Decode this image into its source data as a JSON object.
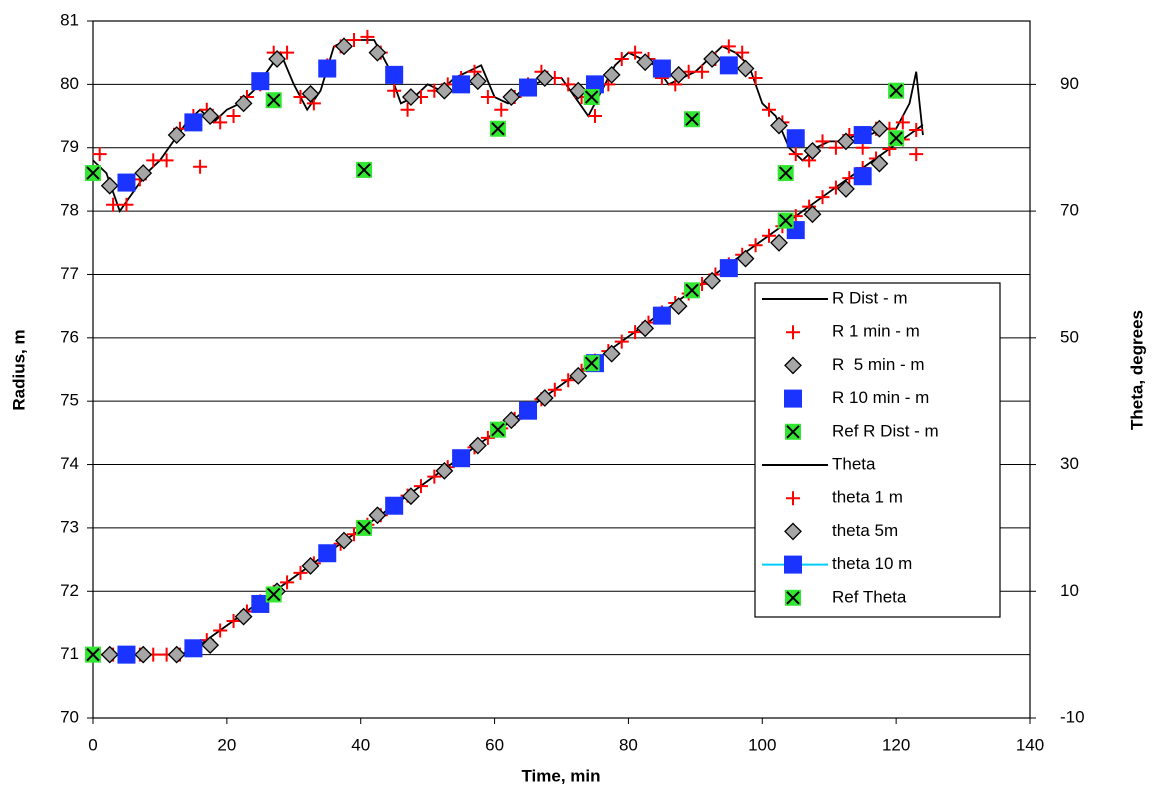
{
  "chart_data": {
    "type": "scatter",
    "x_label": "Time, min",
    "y_label": "Radius, m",
    "y2_label": "Theta, degrees",
    "xlim": [
      0,
      140
    ],
    "xticks": [
      0,
      20,
      40,
      60,
      80,
      100,
      120,
      140
    ],
    "ylim": [
      70,
      81
    ],
    "yticks": [
      70,
      71,
      72,
      73,
      74,
      75,
      76,
      77,
      78,
      79,
      80,
      81
    ],
    "y2lim": [
      -10,
      100
    ],
    "y2ticks": [
      -10,
      10,
      30,
      50,
      70,
      90
    ],
    "grid": true,
    "legend": "right",
    "series": [
      {
        "name": "R Dist - m",
        "marker": "line",
        "color": "#000000",
        "x": [
          0,
          2,
          4,
          6,
          8,
          10,
          12,
          14,
          16,
          18,
          20,
          22,
          24,
          26,
          28,
          30,
          32,
          34,
          36,
          38,
          40,
          42,
          44,
          46,
          48,
          50,
          52,
          54,
          56,
          58,
          60,
          62,
          64,
          66,
          68,
          70,
          72,
          74,
          76,
          78,
          80,
          82,
          84,
          86,
          88,
          90,
          92,
          94,
          96,
          98,
          100,
          102,
          104,
          106,
          108,
          110,
          112,
          114,
          116,
          118,
          120,
          122,
          123,
          124
        ],
        "values": [
          78.8,
          78.6,
          78.0,
          78.3,
          78.6,
          78.8,
          79.1,
          79.4,
          79.6,
          79.4,
          79.6,
          79.7,
          79.9,
          80.2,
          80.5,
          80.0,
          79.6,
          79.9,
          80.6,
          80.7,
          80.7,
          80.7,
          80.3,
          79.7,
          79.8,
          80.0,
          79.9,
          80.1,
          80.2,
          80.3,
          79.8,
          79.7,
          79.9,
          80.0,
          80.1,
          80.1,
          79.8,
          79.5,
          79.9,
          80.3,
          80.5,
          80.4,
          80.3,
          80.0,
          80.1,
          80.2,
          80.4,
          80.6,
          80.5,
          80.3,
          79.7,
          79.5,
          79.0,
          78.8,
          79.0,
          79.1,
          79.1,
          79.2,
          79.2,
          79.3,
          79.3,
          79.7,
          80.2,
          79.2
        ]
      },
      {
        "name": "R 1 min - m",
        "marker": "plus",
        "color": "#ff0000",
        "x": [
          1,
          3,
          5,
          7,
          9,
          11,
          13,
          15,
          16,
          17,
          19,
          21,
          23,
          25,
          27,
          29,
          31,
          33,
          35,
          37,
          39,
          41,
          43,
          45,
          47,
          49,
          51,
          53,
          55,
          57,
          59,
          61,
          63,
          65,
          67,
          69,
          71,
          73,
          75,
          77,
          79,
          81,
          83,
          85,
          87,
          89,
          91,
          93,
          95,
          97,
          99,
          101,
          103,
          105,
          107,
          109,
          111,
          113,
          115,
          117,
          119,
          121,
          123
        ],
        "values": [
          78.9,
          78.1,
          78.1,
          78.5,
          78.8,
          78.8,
          79.3,
          79.5,
          78.7,
          79.6,
          79.4,
          79.5,
          79.8,
          80.0,
          80.5,
          80.5,
          79.8,
          79.7,
          80.3,
          80.6,
          80.7,
          80.75,
          80.5,
          79.9,
          79.6,
          79.8,
          79.9,
          80.0,
          80.1,
          80.2,
          79.8,
          79.6,
          79.8,
          80.0,
          80.2,
          80.1,
          80.0,
          79.8,
          79.5,
          80.0,
          80.4,
          80.5,
          80.4,
          80.1,
          80.0,
          80.2,
          80.2,
          80.4,
          80.6,
          80.5,
          80.1,
          79.6,
          79.4,
          78.9,
          78.8,
          79.1,
          79.0,
          79.2,
          79.0,
          79.3,
          79.3,
          79.4,
          78.9
        ]
      },
      {
        "name": "R  5 min - m",
        "marker": "diamond",
        "color": "#a6a6a6",
        "x": [
          2.5,
          7.5,
          12.5,
          17.5,
          22.5,
          27.5,
          32.5,
          37.5,
          42.5,
          47.5,
          52.5,
          57.5,
          62.5,
          67.5,
          72.5,
          77.5,
          82.5,
          87.5,
          92.5,
          97.5,
          102.5,
          107.5,
          112.5,
          117.5
        ],
        "values": [
          78.4,
          78.6,
          79.2,
          79.5,
          79.7,
          80.4,
          79.85,
          80.6,
          80.5,
          79.8,
          79.9,
          80.05,
          79.8,
          80.1,
          79.9,
          80.15,
          80.35,
          80.15,
          80.4,
          80.25,
          79.35,
          78.95,
          79.1,
          79.3
        ]
      },
      {
        "name": "R 10 min - m",
        "marker": "square",
        "color": "#1a33ff",
        "x": [
          5,
          15,
          25,
          35,
          45,
          55,
          65,
          75,
          85,
          95,
          105,
          115
        ],
        "values": [
          78.45,
          79.4,
          80.05,
          80.25,
          80.15,
          80.0,
          79.95,
          80.0,
          80.25,
          80.3,
          79.15,
          79.2
        ]
      },
      {
        "name": "Ref R Dist - m",
        "marker": "xsquare",
        "color": "#33e633",
        "x": [
          0,
          27,
          40.5,
          60.5,
          74.5,
          89.5,
          103.5,
          120
        ],
        "values": [
          78.6,
          79.75,
          78.65,
          79.3,
          79.8,
          79.45,
          78.6,
          79.9
        ]
      },
      {
        "name": "Theta",
        "marker": "line",
        "color": "#000000",
        "axis": "y2",
        "x": [
          0,
          5,
          10,
          13,
          15,
          20,
          25,
          30,
          35,
          40,
          45,
          50,
          55,
          60,
          65,
          70,
          75,
          80,
          85,
          90,
          95,
          100,
          105,
          110,
          115,
          120,
          124
        ],
        "values": [
          0,
          0,
          0,
          0,
          0.8,
          4.6,
          8.4,
          12.2,
          16,
          19.8,
          23.6,
          27.4,
          31.2,
          35,
          38.8,
          42.6,
          46.4,
          50.2,
          54,
          57.8,
          61.6,
          65.4,
          69.2,
          73,
          76.8,
          80.6,
          83.6
        ]
      },
      {
        "name": "theta 1 m",
        "marker": "plus",
        "color": "#ff0000",
        "axis": "y2",
        "x": [
          1,
          3,
          5,
          7,
          9,
          11,
          13,
          15,
          17,
          19,
          21,
          23,
          25,
          27,
          29,
          31,
          33,
          35,
          37,
          39,
          41,
          43,
          45,
          47,
          49,
          51,
          53,
          55,
          57,
          59,
          61,
          63,
          65,
          67,
          69,
          71,
          73,
          75,
          77,
          79,
          81,
          83,
          85,
          87,
          89,
          91,
          93,
          95,
          97,
          99,
          101,
          103,
          105,
          107,
          109,
          111,
          113,
          115,
          117,
          119,
          121,
          123
        ],
        "values": [
          0,
          0,
          0,
          0,
          0,
          0,
          0,
          0.8,
          2.3,
          3.8,
          5.3,
          6.8,
          8.4,
          9.9,
          11.4,
          12.9,
          14.4,
          16,
          17.5,
          19,
          20.5,
          22,
          23.6,
          25.1,
          26.6,
          28.1,
          29.6,
          31.2,
          32.7,
          34.2,
          35.7,
          37.2,
          38.8,
          40.3,
          41.8,
          43.3,
          44.8,
          46.4,
          47.9,
          49.4,
          50.9,
          52.4,
          54,
          55.5,
          57,
          58.5,
          60,
          61.6,
          63.1,
          64.6,
          66.1,
          67.6,
          69.2,
          70.7,
          72.2,
          73.7,
          75.2,
          76.8,
          78.3,
          79.8,
          81.3,
          82.8
        ]
      },
      {
        "name": "theta 5m",
        "marker": "diamond",
        "color": "#a6a6a6",
        "axis": "y2",
        "x": [
          2.5,
          7.5,
          12.5,
          17.5,
          22.5,
          27.5,
          32.5,
          37.5,
          42.5,
          47.5,
          52.5,
          57.5,
          62.5,
          67.5,
          72.5,
          77.5,
          82.5,
          87.5,
          92.5,
          97.5,
          102.5,
          107.5,
          112.5,
          117.5
        ],
        "values": [
          0,
          0,
          0,
          1.5,
          6,
          10,
          14,
          18,
          22,
          25,
          29,
          33,
          37,
          40.5,
          44,
          47.5,
          51.5,
          55,
          59,
          62.5,
          65,
          69.5,
          73.5,
          77.5
        ]
      },
      {
        "name": "theta 10 m",
        "marker": "square",
        "color": "#1a33ff",
        "line_color": "#00ccff",
        "axis": "y2",
        "x": [
          5,
          15,
          25,
          35,
          45,
          55,
          65,
          75,
          85,
          95,
          105,
          115
        ],
        "values": [
          0,
          1,
          8,
          16,
          23.5,
          31,
          38.5,
          46,
          53.5,
          61,
          67,
          75.5
        ]
      },
      {
        "name": "Ref Theta",
        "marker": "xsquare",
        "color": "#33e633",
        "axis": "y2",
        "x": [
          0,
          27,
          40.5,
          60.5,
          74.5,
          89.5,
          103.5,
          120
        ],
        "values": [
          0,
          9.5,
          20,
          35.5,
          46,
          57.5,
          68.5,
          81.5
        ]
      }
    ]
  }
}
